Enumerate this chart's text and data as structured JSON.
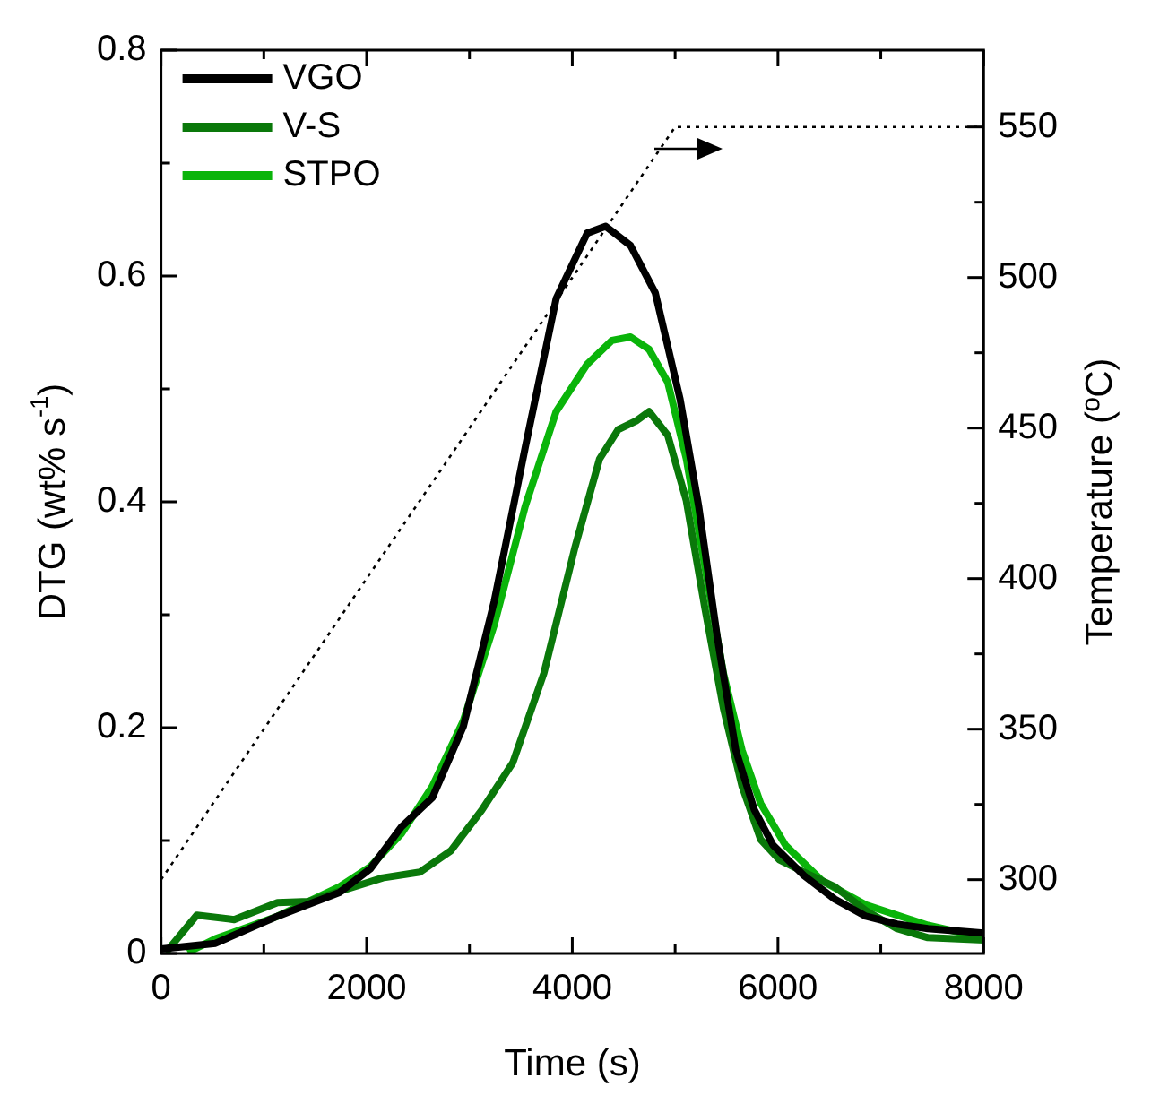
{
  "chart_data": {
    "type": "line",
    "xlabel": "Time (s)",
    "ylabel": "DTG (wt% s$^{-1}$)",
    "y2label": "Temperature (ºC)",
    "xlim": [
      0,
      8000
    ],
    "xticks": [
      0,
      {
        "value": 1000,
        "label": null
      },
      2000,
      {
        "value": 3000,
        "label": null
      },
      4000,
      {
        "value": 5000,
        "label": null
      },
      6000,
      {
        "value": 7000,
        "label": null
      },
      8000
    ],
    "ylim": [
      0,
      0.8
    ],
    "yticks": [
      0,
      {
        "value": 0.1,
        "label": null
      },
      0.2,
      {
        "value": 0.3,
        "label": null
      },
      0.4,
      {
        "value": 0.5,
        "label": null
      },
      0.6,
      {
        "value": 0.7,
        "label": null
      },
      0.8
    ],
    "y2lim": [
      275.5,
      575.5
    ],
    "y2ticks": [
      300,
      {
        "value": 325,
        "label": null
      },
      350,
      {
        "value": 375,
        "label": null
      },
      400,
      {
        "value": 425,
        "label": null
      },
      450,
      {
        "value": 475,
        "label": null
      },
      500,
      {
        "value": 525,
        "label": null
      },
      550
    ],
    "grid": false,
    "legend": "top left",
    "marker": "none",
    "line_style": "solid",
    "series": [
      {
        "name": "VGO",
        "color": "#000000",
        "x": [
          0,
          530,
          1133,
          1735,
          2036,
          2337,
          2639,
          2940,
          3241,
          3542,
          3843,
          4145,
          4325,
          4566,
          4807,
          5048,
          5229,
          5410,
          5590,
          5771,
          5952,
          6253,
          6554,
          6855,
          7157,
          7458,
          8000
        ],
        "values": [
          0.004,
          0.009,
          0.033,
          0.054,
          0.075,
          0.112,
          0.138,
          0.201,
          0.312,
          0.448,
          0.58,
          0.638,
          0.644,
          0.627,
          0.585,
          0.491,
          0.396,
          0.28,
          0.18,
          0.127,
          0.096,
          0.069,
          0.048,
          0.033,
          0.026,
          0.022,
          0.018
        ]
      },
      {
        "name": "V-S",
        "color": "#0a780a",
        "x": [
          48,
          349,
          711,
          1133,
          1434,
          1735,
          2157,
          2518,
          2819,
          3120,
          3422,
          3723,
          4024,
          4265,
          4446,
          4627,
          4747,
          4928,
          5109,
          5289,
          5470,
          5651,
          5831,
          6012,
          6253,
          6554,
          6855,
          7157,
          7458,
          8000
        ],
        "values": [
          0.001,
          0.034,
          0.03,
          0.045,
          0.046,
          0.055,
          0.067,
          0.072,
          0.091,
          0.127,
          0.169,
          0.248,
          0.359,
          0.438,
          0.464,
          0.472,
          0.48,
          0.459,
          0.401,
          0.306,
          0.217,
          0.148,
          0.101,
          0.083,
          0.072,
          0.059,
          0.038,
          0.022,
          0.014,
          0.012
        ]
      },
      {
        "name": "STPO",
        "color": "#0ab40a",
        "x": [
          259,
          530,
          1133,
          1735,
          2036,
          2337,
          2639,
          2940,
          3241,
          3542,
          3843,
          4145,
          4386,
          4566,
          4747,
          4928,
          5109,
          5289,
          5470,
          5651,
          5831,
          6072,
          6434,
          6855,
          7458,
          8000
        ],
        "values": [
          0.001,
          0.013,
          0.033,
          0.059,
          0.077,
          0.106,
          0.148,
          0.206,
          0.291,
          0.396,
          0.48,
          0.522,
          0.543,
          0.546,
          0.535,
          0.506,
          0.438,
          0.343,
          0.248,
          0.18,
          0.133,
          0.096,
          0.064,
          0.043,
          0.025,
          0.014
        ]
      },
      {
        "color": "#000000",
        "axis": "y2",
        "line_style": "dotted",
        "x": [
          0,
          5000,
          8000
        ],
        "values": [
          300,
          550,
          550
        ]
      }
    ]
  }
}
